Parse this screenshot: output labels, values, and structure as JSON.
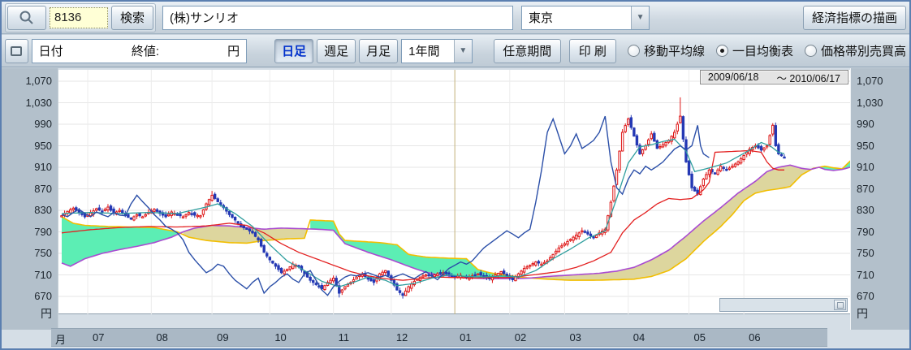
{
  "toolbar1": {
    "stock_code": "8136",
    "search_label": "検索",
    "stock_name": "(株)サンリオ",
    "market": "東京",
    "draw_indicators_label": "経済指標の描画"
  },
  "toolbar2": {
    "date_label": "日付",
    "close_label": "終値:",
    "unit_label": "円",
    "tabs": [
      {
        "label": "日足",
        "active": true
      },
      {
        "label": "週足",
        "active": false
      },
      {
        "label": "月足",
        "active": false
      }
    ],
    "range_select": "1年間",
    "custom_period_label": "任意期間",
    "print_label": "印 刷",
    "radios": [
      {
        "label": "移動平均線",
        "selected": false
      },
      {
        "label": "一目均衡表",
        "selected": true
      },
      {
        "label": "価格帯別売買高",
        "selected": false
      }
    ]
  },
  "chart_data": {
    "type": "candlestick",
    "subtype": "ichimoku",
    "period_start": "2009/06/18",
    "period_end": "～ 2010/06/17",
    "unit": "円",
    "x_unit_label": "月",
    "ylim": [
      670,
      1070
    ],
    "y_ticks": [
      670,
      710,
      750,
      790,
      830,
      870,
      910,
      950,
      990,
      1030,
      1070
    ],
    "months": [
      {
        "label": "07",
        "day": 9
      },
      {
        "label": "08",
        "day": 31
      },
      {
        "label": "09",
        "day": 52
      },
      {
        "label": "10",
        "day": 72
      },
      {
        "label": "11",
        "day": 94
      },
      {
        "label": "12",
        "day": 114
      },
      {
        "label": "01",
        "day": 136
      },
      {
        "label": "02",
        "day": 155
      },
      {
        "label": "03",
        "day": 174
      },
      {
        "label": "04",
        "day": 196
      },
      {
        "label": "05",
        "day": 217
      },
      {
        "label": "06",
        "day": 236
      }
    ],
    "year_divider_month": "01",
    "total_days": 250,
    "cloud_extends_to_day": 274,
    "chikou_shift": 26,
    "series": {
      "close_waypoints": [
        [
          0,
          820
        ],
        [
          2,
          828
        ],
        [
          4,
          834
        ],
        [
          6,
          826
        ],
        [
          8,
          818
        ],
        [
          10,
          825
        ],
        [
          12,
          833
        ],
        [
          14,
          828
        ],
        [
          16,
          836
        ],
        [
          18,
          824
        ],
        [
          20,
          830
        ],
        [
          22,
          820
        ],
        [
          24,
          814
        ],
        [
          26,
          822
        ],
        [
          28,
          818
        ],
        [
          30,
          826
        ],
        [
          32,
          832
        ],
        [
          34,
          824
        ],
        [
          36,
          818
        ],
        [
          38,
          827
        ],
        [
          40,
          822
        ],
        [
          42,
          818
        ],
        [
          44,
          826
        ],
        [
          46,
          821
        ],
        [
          48,
          820
        ],
        [
          50,
          842
        ],
        [
          52,
          858
        ],
        [
          54,
          846
        ],
        [
          56,
          835
        ],
        [
          58,
          822
        ],
        [
          60,
          812
        ],
        [
          62,
          800
        ],
        [
          64,
          795
        ],
        [
          66,
          788
        ],
        [
          68,
          775
        ],
        [
          70,
          752
        ],
        [
          72,
          738
        ],
        [
          74,
          726
        ],
        [
          76,
          714
        ],
        [
          78,
          720
        ],
        [
          80,
          730
        ],
        [
          82,
          726
        ],
        [
          84,
          712
        ],
        [
          86,
          700
        ],
        [
          88,
          692
        ],
        [
          90,
          684
        ],
        [
          92,
          696
        ],
        [
          94,
          704
        ],
        [
          96,
          676
        ],
        [
          98,
          688
        ],
        [
          100,
          696
        ],
        [
          102,
          706
        ],
        [
          104,
          712
        ],
        [
          106,
          702
        ],
        [
          108,
          696
        ],
        [
          110,
          712
        ],
        [
          112,
          718
        ],
        [
          114,
          700
        ],
        [
          116,
          682
        ],
        [
          118,
          672
        ],
        [
          120,
          688
        ],
        [
          122,
          698
        ],
        [
          124,
          706
        ],
        [
          126,
          710
        ],
        [
          128,
          708
        ],
        [
          130,
          712
        ],
        [
          132,
          714
        ],
        [
          134,
          710
        ],
        [
          136,
          706
        ],
        [
          138,
          709
        ],
        [
          140,
          704
        ],
        [
          142,
          708
        ],
        [
          144,
          712
        ],
        [
          146,
          707
        ],
        [
          148,
          703
        ],
        [
          150,
          710
        ],
        [
          152,
          716
        ],
        [
          154,
          708
        ],
        [
          156,
          701
        ],
        [
          158,
          712
        ],
        [
          160,
          722
        ],
        [
          162,
          728
        ],
        [
          164,
          734
        ],
        [
          166,
          730
        ],
        [
          168,
          736
        ],
        [
          170,
          748
        ],
        [
          172,
          760
        ],
        [
          174,
          768
        ],
        [
          176,
          776
        ],
        [
          178,
          784
        ],
        [
          180,
          792
        ],
        [
          182,
          786
        ],
        [
          184,
          779
        ],
        [
          186,
          788
        ],
        [
          188,
          795
        ],
        [
          190,
          845
        ],
        [
          192,
          905
        ],
        [
          194,
          975
        ],
        [
          196,
          1000
        ],
        [
          198,
          968
        ],
        [
          200,
          935
        ],
        [
          202,
          950
        ],
        [
          204,
          972
        ],
        [
          206,
          945
        ],
        [
          208,
          952
        ],
        [
          210,
          960
        ],
        [
          212,
          975
        ],
        [
          214,
          1005
        ],
        [
          216,
          920
        ],
        [
          218,
          872
        ],
        [
          220,
          860
        ],
        [
          222,
          888
        ],
        [
          224,
          905
        ],
        [
          226,
          898
        ],
        [
          228,
          912
        ],
        [
          230,
          905
        ],
        [
          232,
          912
        ],
        [
          234,
          920
        ],
        [
          236,
          932
        ],
        [
          238,
          944
        ],
        [
          240,
          950
        ],
        [
          242,
          942
        ],
        [
          244,
          950
        ],
        [
          246,
          988
        ],
        [
          247,
          950
        ],
        [
          248,
          935
        ],
        [
          250,
          928
        ]
      ],
      "tenkan_sen": [
        [
          0,
          824
        ],
        [
          10,
          826
        ],
        [
          20,
          824
        ],
        [
          30,
          826
        ],
        [
          40,
          824
        ],
        [
          50,
          836
        ],
        [
          54,
          842
        ],
        [
          60,
          824
        ],
        [
          66,
          800
        ],
        [
          72,
          766
        ],
        [
          78,
          736
        ],
        [
          84,
          718
        ],
        [
          90,
          698
        ],
        [
          96,
          688
        ],
        [
          102,
          698
        ],
        [
          106,
          706
        ],
        [
          112,
          700
        ],
        [
          116,
          690
        ],
        [
          122,
          694
        ],
        [
          128,
          704
        ],
        [
          134,
          710
        ],
        [
          140,
          707
        ],
        [
          146,
          706
        ],
        [
          152,
          708
        ],
        [
          158,
          706
        ],
        [
          164,
          718
        ],
        [
          170,
          740
        ],
        [
          176,
          758
        ],
        [
          182,
          778
        ],
        [
          188,
          792
        ],
        [
          192,
          852
        ],
        [
          196,
          918
        ],
        [
          200,
          948
        ],
        [
          204,
          952
        ],
        [
          208,
          958
        ],
        [
          212,
          962
        ],
        [
          216,
          940
        ],
        [
          219,
          902
        ],
        [
          222,
          906
        ],
        [
          226,
          912
        ],
        [
          230,
          918
        ],
        [
          234,
          930
        ],
        [
          238,
          942
        ],
        [
          242,
          956
        ],
        [
          245,
          950
        ],
        [
          248,
          938
        ],
        [
          250,
          935
        ]
      ],
      "kijun_sen": [
        [
          0,
          788
        ],
        [
          10,
          794
        ],
        [
          20,
          798
        ],
        [
          30,
          800
        ],
        [
          40,
          799
        ],
        [
          50,
          801
        ],
        [
          58,
          806
        ],
        [
          64,
          802
        ],
        [
          70,
          788
        ],
        [
          76,
          768
        ],
        [
          82,
          752
        ],
        [
          88,
          740
        ],
        [
          94,
          728
        ],
        [
          100,
          716
        ],
        [
          106,
          708
        ],
        [
          112,
          703
        ],
        [
          118,
          700
        ],
        [
          124,
          703
        ],
        [
          130,
          706
        ],
        [
          136,
          705
        ],
        [
          142,
          704
        ],
        [
          148,
          705
        ],
        [
          154,
          705
        ],
        [
          160,
          708
        ],
        [
          166,
          712
        ],
        [
          172,
          716
        ],
        [
          178,
          724
        ],
        [
          184,
          736
        ],
        [
          190,
          752
        ],
        [
          194,
          788
        ],
        [
          198,
          812
        ],
        [
          202,
          826
        ],
        [
          206,
          842
        ],
        [
          210,
          852
        ],
        [
          214,
          850
        ],
        [
          218,
          852
        ],
        [
          222,
          868
        ],
        [
          224,
          882
        ],
        [
          226,
          938
        ],
        [
          238,
          941
        ],
        [
          242,
          938
        ],
        [
          244,
          920
        ],
        [
          246,
          908
        ],
        [
          248,
          905
        ],
        [
          250,
          905
        ]
      ],
      "senkou_gold": [
        [
          0,
          818
        ],
        [
          4,
          806
        ],
        [
          8,
          802
        ],
        [
          16,
          800
        ],
        [
          24,
          799
        ],
        [
          32,
          798
        ],
        [
          40,
          790
        ],
        [
          44,
          780
        ],
        [
          50,
          774
        ],
        [
          58,
          770
        ],
        [
          64,
          769
        ],
        [
          70,
          774
        ],
        [
          78,
          777
        ],
        [
          84,
          778
        ],
        [
          86,
          812
        ],
        [
          94,
          810
        ],
        [
          96,
          786
        ],
        [
          98,
          774
        ],
        [
          104,
          772
        ],
        [
          110,
          770
        ],
        [
          116,
          766
        ],
        [
          120,
          748
        ],
        [
          126,
          743
        ],
        [
          134,
          741
        ],
        [
          140,
          740
        ],
        [
          144,
          720
        ],
        [
          148,
          714
        ],
        [
          154,
          709
        ],
        [
          160,
          705
        ],
        [
          168,
          702
        ],
        [
          176,
          700
        ],
        [
          184,
          700
        ],
        [
          192,
          701
        ],
        [
          198,
          702
        ],
        [
          204,
          707
        ],
        [
          210,
          718
        ],
        [
          216,
          740
        ],
        [
          222,
          772
        ],
        [
          228,
          800
        ],
        [
          232,
          822
        ],
        [
          236,
          848
        ],
        [
          240,
          862
        ],
        [
          244,
          867
        ],
        [
          248,
          870
        ],
        [
          252,
          874
        ],
        [
          256,
          896
        ],
        [
          260,
          908
        ],
        [
          264,
          912
        ],
        [
          267,
          909
        ],
        [
          270,
          907
        ],
        [
          274,
          928
        ]
      ],
      "senkou_purple": [
        [
          0,
          732
        ],
        [
          3,
          726
        ],
        [
          8,
          740
        ],
        [
          14,
          750
        ],
        [
          20,
          757
        ],
        [
          26,
          763
        ],
        [
          32,
          770
        ],
        [
          38,
          780
        ],
        [
          42,
          790
        ],
        [
          46,
          797
        ],
        [
          52,
          802
        ],
        [
          58,
          801
        ],
        [
          64,
          798
        ],
        [
          70,
          795
        ],
        [
          76,
          797
        ],
        [
          82,
          796
        ],
        [
          88,
          795
        ],
        [
          94,
          793
        ],
        [
          98,
          768
        ],
        [
          102,
          760
        ],
        [
          106,
          752
        ],
        [
          110,
          745
        ],
        [
          114,
          738
        ],
        [
          118,
          730
        ],
        [
          122,
          722
        ],
        [
          126,
          715
        ],
        [
          130,
          710
        ],
        [
          136,
          707
        ],
        [
          142,
          704
        ],
        [
          148,
          703
        ],
        [
          155,
          703
        ],
        [
          162,
          704
        ],
        [
          168,
          707
        ],
        [
          174,
          709
        ],
        [
          180,
          711
        ],
        [
          186,
          713
        ],
        [
          192,
          717
        ],
        [
          198,
          724
        ],
        [
          204,
          738
        ],
        [
          210,
          756
        ],
        [
          216,
          782
        ],
        [
          222,
          810
        ],
        [
          228,
          835
        ],
        [
          234,
          862
        ],
        [
          240,
          884
        ],
        [
          244,
          902
        ],
        [
          248,
          910
        ],
        [
          252,
          914
        ],
        [
          256,
          908
        ],
        [
          259,
          906
        ],
        [
          262,
          910
        ],
        [
          264,
          906
        ],
        [
          267,
          904
        ],
        [
          270,
          906
        ],
        [
          274,
          912
        ]
      ]
    },
    "spikes": [
      {
        "day": 52,
        "high": 866
      },
      {
        "day": 96,
        "low": 668
      },
      {
        "day": 118,
        "low": 666
      },
      {
        "day": 214,
        "high": 1040
      },
      {
        "day": 246,
        "high": 992
      }
    ],
    "colors": {
      "up_candle": "#de1515",
      "down_candle": "#2438b4",
      "tenkan": "#2f9e9e",
      "kijun": "#e32020",
      "chikou": "#2b4fa8",
      "senkou_gold": "#f2be00",
      "senkou_purple": "#a94bd1",
      "cloud_green": "#5ceeb4",
      "cloud_khaki": "#ddd69e",
      "grid": "#e6e6e6",
      "year_divider": "#c2b078"
    },
    "legend_position": "none",
    "grid": true
  }
}
